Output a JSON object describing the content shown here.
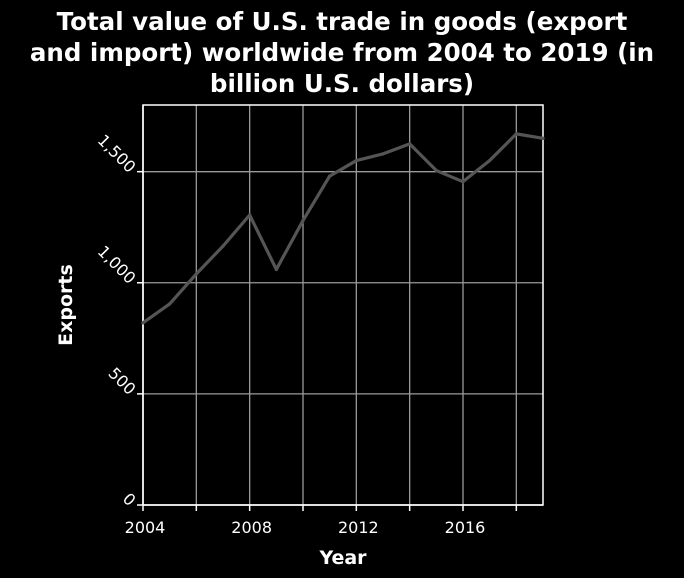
{
  "colors": {
    "background": "#000000",
    "text": "#ffffff",
    "grid": "#9a9a9a",
    "line": "#555555"
  },
  "chart_data": {
    "type": "line",
    "title": "Total value of U.S. trade in goods (export and import) worldwide from 2004 to 2019 (in billion U.S. dollars)",
    "title_lines": [
      "Total value of U.S. trade in goods (export",
      "and import) worldwide from 2004 to 2019 (in",
      "billion U.S. dollars)"
    ],
    "xlabel": "Year",
    "ylabel": "Exports",
    "xlim": [
      2004,
      2019
    ],
    "ylim": [
      0,
      1800
    ],
    "x_ticks": [
      2004,
      2006,
      2008,
      2010,
      2012,
      2014,
      2016,
      2018
    ],
    "x_tick_labels": [
      "2004",
      "",
      "2008",
      "",
      "2012",
      "",
      "2016",
      ""
    ],
    "y_ticks": [
      0,
      500,
      1000,
      1500
    ],
    "y_tick_labels": [
      "0",
      "500",
      "1,000",
      "1,500"
    ],
    "grid": true,
    "series": [
      {
        "name": "Exports",
        "x": [
          2004,
          2005,
          2006,
          2007,
          2008,
          2009,
          2010,
          2011,
          2012,
          2013,
          2014,
          2015,
          2016,
          2017,
          2018,
          2019
        ],
        "values": [
          820,
          905,
          1040,
          1165,
          1305,
          1060,
          1280,
          1480,
          1550,
          1580,
          1625,
          1505,
          1455,
          1550,
          1670,
          1650
        ]
      }
    ]
  }
}
